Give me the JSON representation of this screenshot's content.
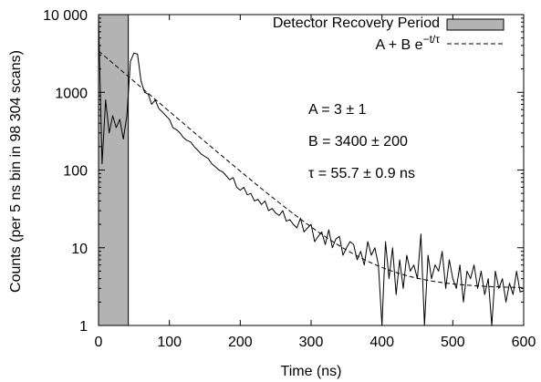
{
  "chart_data": {
    "type": "line",
    "xlabel": "Time (ns)",
    "ylabel": "Counts (per 5 ns bin in 98 304 scans)",
    "xlim": [
      0,
      600
    ],
    "ylim": [
      1,
      10000
    ],
    "yscale": "log",
    "grid": false,
    "legend_placement": "top-right",
    "x_ticks": [
      0,
      100,
      200,
      300,
      400,
      500,
      600
    ],
    "x_tick_labels": [
      "0",
      "100",
      "200",
      "300",
      "400",
      "500",
      "600"
    ],
    "y_ticks": [
      1,
      10,
      100,
      1000,
      10000
    ],
    "y_tick_labels": [
      "1",
      "10",
      "100",
      "1000",
      "10 000"
    ],
    "legend": {
      "shaded_label": "Detector Recovery Period",
      "fit_label_main": "A + B e",
      "fit_label_exponent": "−t/τ"
    },
    "recovery_region": {
      "x_start": 0,
      "x_end": 42,
      "fill_color": "#b3b3b3"
    },
    "fit": {
      "A": 3,
      "B": 3400,
      "tau": 55.7,
      "style": "dashed"
    },
    "annotations": [
      "A = 3 ± 1",
      "B = 3400 ± 200",
      "τ = 55.7 ± 0.9 ns"
    ],
    "series": [
      {
        "x": [
          0,
          5,
          10,
          15,
          20,
          25,
          30,
          35,
          40,
          45,
          50,
          55,
          60,
          65,
          70,
          75,
          80,
          85,
          90,
          95,
          100,
          105,
          110,
          115,
          120,
          125,
          130,
          135,
          140,
          145,
          150,
          155,
          160,
          165,
          170,
          175,
          180,
          185,
          190,
          195,
          200,
          205,
          210,
          215,
          220,
          225,
          230,
          235,
          240,
          245,
          250,
          255,
          260,
          265,
          270,
          275,
          280,
          285,
          290,
          295,
          300,
          305,
          310,
          315,
          320,
          325,
          330,
          335,
          340,
          345,
          350,
          355,
          360,
          365,
          370,
          375,
          380,
          385,
          390,
          395,
          400,
          405,
          410,
          415,
          420,
          425,
          430,
          435,
          440,
          445,
          450,
          455,
          460,
          465,
          470,
          475,
          480,
          485,
          490,
          495,
          500,
          505,
          510,
          515,
          520,
          525,
          530,
          535,
          540,
          545,
          550,
          555,
          560,
          565,
          570,
          575,
          580,
          585,
          590,
          595,
          600
        ],
        "y": [
          9000,
          120,
          800,
          300,
          500,
          350,
          450,
          250,
          500,
          2500,
          3200,
          3100,
          1400,
          1000,
          950,
          700,
          800,
          620,
          560,
          500,
          450,
          350,
          330,
          300,
          260,
          240,
          230,
          200,
          180,
          160,
          150,
          140,
          120,
          110,
          100,
          95,
          85,
          75,
          80,
          60,
          55,
          60,
          48,
          50,
          40,
          42,
          36,
          40,
          30,
          32,
          28,
          26,
          30,
          22,
          23,
          20,
          18,
          24,
          16,
          18,
          20,
          12,
          14,
          16,
          11,
          17,
          10,
          13,
          14,
          8,
          10,
          12,
          11,
          7,
          9,
          6,
          12,
          8,
          10,
          6,
          1,
          12,
          4,
          10,
          2.5,
          7,
          3,
          8,
          5,
          6,
          4,
          15,
          1,
          8,
          4,
          6,
          5,
          9,
          3,
          7,
          4,
          3,
          6,
          2,
          5,
          4,
          6,
          3,
          5,
          2.5,
          4,
          1,
          5,
          3,
          4,
          2,
          3.5,
          2.5,
          5,
          2.7,
          2.8
        ]
      }
    ]
  }
}
